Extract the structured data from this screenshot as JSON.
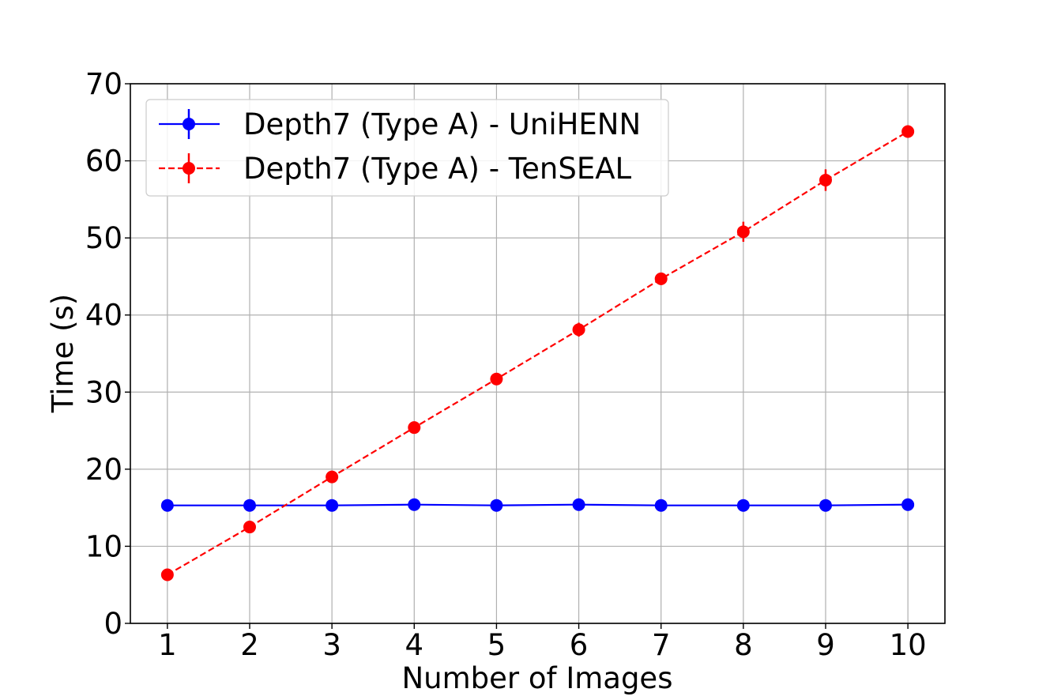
{
  "chart_data": {
    "type": "line",
    "title": "",
    "xlabel": "Number of Images",
    "ylabel": "Time (s)",
    "x": [
      1,
      2,
      3,
      4,
      5,
      6,
      7,
      8,
      9,
      10
    ],
    "xlim": [
      0.55,
      10.45
    ],
    "ylim": [
      0,
      70
    ],
    "xticks": [
      "1",
      "2",
      "3",
      "4",
      "5",
      "6",
      "7",
      "8",
      "9",
      "10"
    ],
    "yticks": [
      "0",
      "10",
      "20",
      "30",
      "40",
      "50",
      "60",
      "70"
    ],
    "grid": true,
    "legend_position": "top-left",
    "series": [
      {
        "name": "Depth7 (Type A) - UniHENN",
        "color": "#0000ff",
        "linestyle": "solid",
        "marker": "circle",
        "values": [
          15.3,
          15.3,
          15.3,
          15.4,
          15.3,
          15.4,
          15.3,
          15.3,
          15.3,
          15.4
        ],
        "errors": [
          0.2,
          0.2,
          0.2,
          0.2,
          0.2,
          0.2,
          0.2,
          0.2,
          0.2,
          0.2
        ]
      },
      {
        "name": "Depth7 (Type A) - TenSEAL",
        "color": "#ff0000",
        "linestyle": "dashed",
        "marker": "circle",
        "values": [
          6.3,
          12.5,
          19.0,
          25.4,
          31.7,
          38.1,
          44.7,
          50.8,
          57.5,
          63.8
        ],
        "errors": [
          0.3,
          0.4,
          0.5,
          0.6,
          0.5,
          0.9,
          0.8,
          1.3,
          1.4,
          0.8
        ]
      }
    ]
  }
}
